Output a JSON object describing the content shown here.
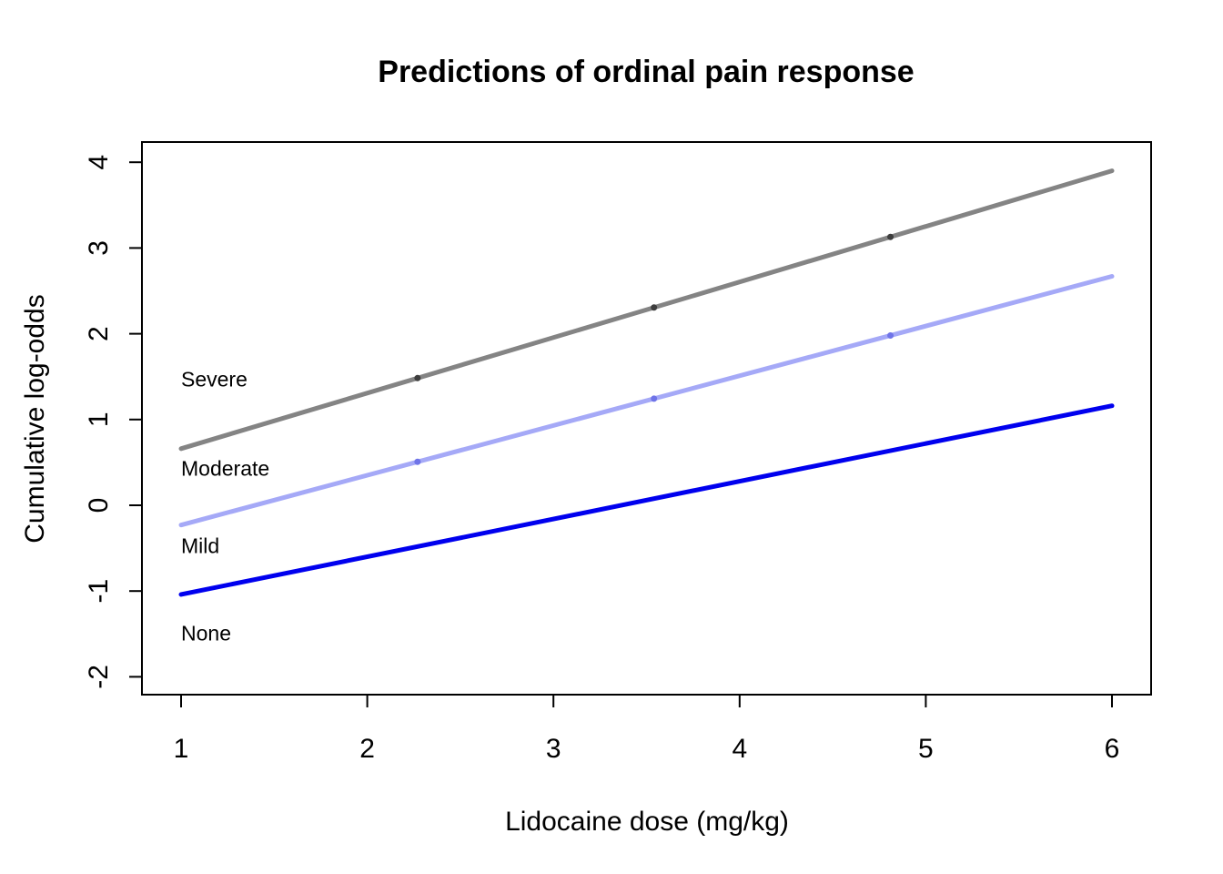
{
  "figure": {
    "background": "#FFFFFF",
    "axis_color": "#000000"
  },
  "chart_data": {
    "type": "line",
    "title": "Predictions of ordinal pain response",
    "xlabel": "Lidocaine dose (mg/kg)",
    "ylabel": "Cumulative log-odds",
    "x_ticks": [
      1,
      2,
      3,
      4,
      5,
      6
    ],
    "y_ticks": [
      -2,
      -1,
      0,
      1,
      2,
      3,
      4
    ],
    "xlim": [
      0.78,
      6.21
    ],
    "ylim": [
      -2.2,
      4.25
    ],
    "grid": false,
    "legend_position": "in-plot text labels",
    "series": [
      {
        "id": "gray",
        "category_label": "Moderate",
        "color": "#848484",
        "x": [
          1,
          6
        ],
        "y": [
          0.66,
          3.9
        ],
        "marker_x": [
          2.27,
          3.54,
          4.81
        ],
        "marker_color": "#3D3D3D"
      },
      {
        "id": "periwinkle",
        "category_label": "Mild",
        "color": "#A5A9F7",
        "x": [
          1,
          6
        ],
        "y": [
          -0.23,
          2.67
        ],
        "marker_x": [
          2.27,
          3.54,
          4.81
        ],
        "marker_color": "#6F74E8"
      },
      {
        "id": "blue",
        "category_label": "None",
        "color": "#0000EE",
        "x": [
          1,
          6
        ],
        "y": [
          -1.04,
          1.16
        ],
        "marker_x": [],
        "marker_color": "#0000CC"
      }
    ],
    "annotations": [
      {
        "text": "Severe",
        "color": "#000000",
        "x": 1.0,
        "y": 1.47
      },
      {
        "text": "Moderate",
        "color": "#8A8A8A",
        "x": 1.0,
        "y": 0.43
      },
      {
        "text": "Mild",
        "color": "#A5A9F7",
        "x": 1.0,
        "y": -0.47
      },
      {
        "text": "None",
        "color": "#0000EE",
        "x": 1.0,
        "y": -1.49
      }
    ]
  }
}
